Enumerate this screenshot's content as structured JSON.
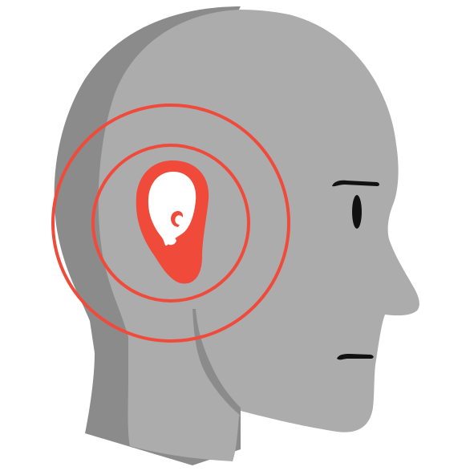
{
  "illustration": {
    "subject": "human-head-profile-with-ear-highlight",
    "colors": {
      "background": "#ffffff",
      "head_light": "#acacac",
      "head_shadow": "#8b8b8b",
      "accent": "#f04a3a",
      "ear_inner": "#ffffff",
      "features": "#111111"
    },
    "icons": [
      "head-icon",
      "ear-icon",
      "sound-wave-icon"
    ]
  }
}
